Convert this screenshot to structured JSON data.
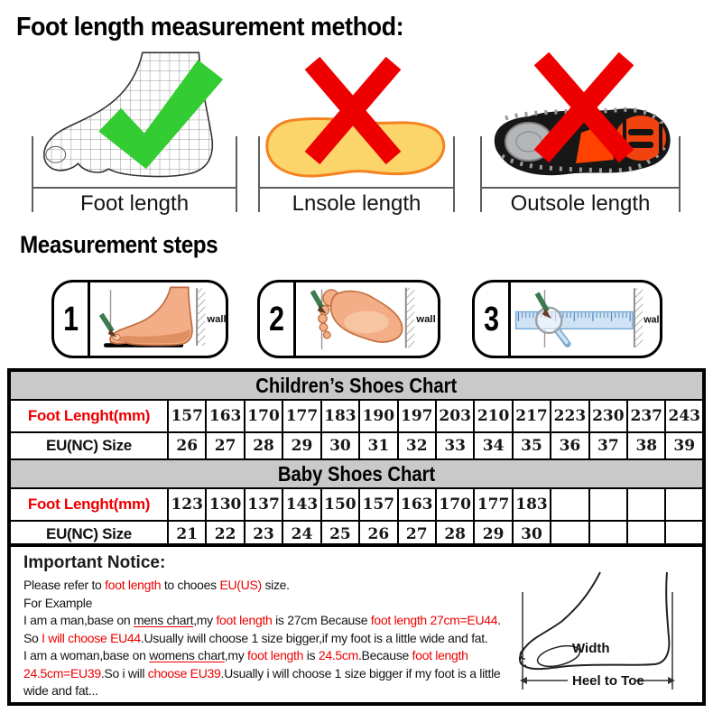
{
  "page": {
    "title": "Foot length measurement method:",
    "steps_title": "Measurement steps"
  },
  "method_items": [
    {
      "label": "Foot length",
      "mark": "check-icon"
    },
    {
      "label": "Lnsole length",
      "mark": "cross-icon"
    },
    {
      "label": "Outsole length",
      "mark": "cross-icon"
    }
  ],
  "steps": [
    {
      "number": "1",
      "wall_label": "wall"
    },
    {
      "number": "2",
      "wall_label": "wall"
    },
    {
      "number": "3",
      "wall_label": "wall"
    }
  ],
  "charts": [
    {
      "title": "Children’s Shoes Chart",
      "rows": [
        {
          "label": "Foot Lenght(mm)",
          "color": "red",
          "values": [
            "157",
            "163",
            "170",
            "177",
            "183",
            "190",
            "197",
            "203",
            "210",
            "217",
            "223",
            "230",
            "237",
            "243"
          ]
        },
        {
          "label": "EU(NC) Size",
          "color": "black",
          "values": [
            "26",
            "27",
            "28",
            "29",
            "30",
            "31",
            "32",
            "33",
            "34",
            "35",
            "36",
            "37",
            "38",
            "39"
          ]
        }
      ]
    },
    {
      "title": "Baby Shoes Chart",
      "rows": [
        {
          "label": "Foot Lenght(mm)",
          "color": "red",
          "values": [
            "123",
            "130",
            "137",
            "143",
            "150",
            "157",
            "163",
            "170",
            "177",
            "183",
            "",
            "",
            "",
            ""
          ]
        },
        {
          "label": "EU(NC) Size",
          "color": "black",
          "values": [
            "21",
            "22",
            "23",
            "24",
            "25",
            "26",
            "27",
            "28",
            "29",
            "30",
            "",
            "",
            "",
            ""
          ]
        }
      ]
    }
  ],
  "notice": {
    "heading": "Important Notice:",
    "lines": [
      [
        {
          "t": "Please refer to "
        },
        {
          "t": "foot length",
          "c": "red"
        },
        {
          "t": " to chooes "
        },
        {
          "t": "EU(US)",
          "c": "red"
        },
        {
          "t": " size."
        }
      ],
      [
        {
          "t": "For Example"
        }
      ],
      [
        {
          "t": "I am a man,base on "
        },
        {
          "t": "mens chart",
          "u": true
        },
        {
          "t": ",my "
        },
        {
          "t": "foot length",
          "c": "red"
        },
        {
          "t": " is 27cm Because "
        },
        {
          "t": "foot length 27cm=EU44",
          "c": "red"
        },
        {
          "t": "."
        }
      ],
      [
        {
          "t": "So "
        },
        {
          "t": "I will choose EU44",
          "c": "red"
        },
        {
          "t": ".Usually iwill choose 1 size bigger,if my foot is a little wide and fat."
        }
      ],
      [
        {
          "t": "I am a woman,base on "
        },
        {
          "t": "womens chart",
          "u": true
        },
        {
          "t": ",my "
        },
        {
          "t": "foot length",
          "c": "red"
        },
        {
          "t": " is "
        },
        {
          "t": "24.5cm",
          "c": "red"
        },
        {
          "t": ".Because "
        },
        {
          "t": "foot length",
          "c": "red"
        }
      ],
      [
        {
          "t": "24.5cm=EU39",
          "c": "red"
        },
        {
          "t": ".So i will "
        },
        {
          "t": "choose EU39",
          "c": "red"
        },
        {
          "t": ".Usually i will choose 1 size bigger if my foot is a little"
        }
      ],
      [
        {
          "t": "wide and fat..."
        }
      ]
    ],
    "foot_diagram": {
      "width_label": "Width",
      "heel_label": "Heel to Toe"
    }
  },
  "colors": {
    "red": "#ee0000",
    "green": "#33cc33",
    "table-gray": "#c9c9c9",
    "skin": "#f3ae88",
    "insole-yellow": "#fbd46a",
    "insole-orange": "#f58220",
    "pencil-green": "#3d7a4d",
    "ruler-blue": "#cfe3f5"
  }
}
